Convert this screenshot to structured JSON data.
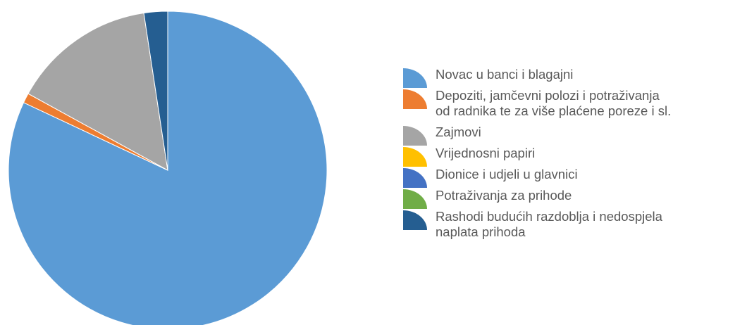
{
  "chart_data": {
    "type": "pie",
    "title": "",
    "legend_position": "right",
    "start_angle_deg": 0,
    "direction": "clockwise",
    "slices": [
      {
        "label": "Novac u banci i blagajni",
        "value": 82.0,
        "color": "#5B9BD5"
      },
      {
        "label": "Depoziti, jamčevni polozi i potraživanja od radnika te za više plaćene poreze i sl.",
        "label_lines": [
          "Depoziti, jamčevni polozi i potraživanja",
          "od radnika te za više plaćene poreze i sl."
        ],
        "value": 1.0,
        "color": "#ED7D31"
      },
      {
        "label": "Zajmovi",
        "value": 14.6,
        "color": "#A5A5A5"
      },
      {
        "label": "Vrijednosni papiri",
        "value": 0.0,
        "color": "#FFC000"
      },
      {
        "label": "Dionice i udjeli u glavnici",
        "value": 0.0,
        "color": "#4472C4"
      },
      {
        "label": "Potraživanja za prihode",
        "value": 0.0,
        "color": "#70AD47"
      },
      {
        "label": "Rashodi budućih razdoblja i nedospjela naplata prihoda",
        "label_lines": [
          "Rashodi budućih razdoblja i nedospjela",
          "naplata prihoda"
        ],
        "value": 2.4,
        "color": "#255E91"
      }
    ]
  }
}
